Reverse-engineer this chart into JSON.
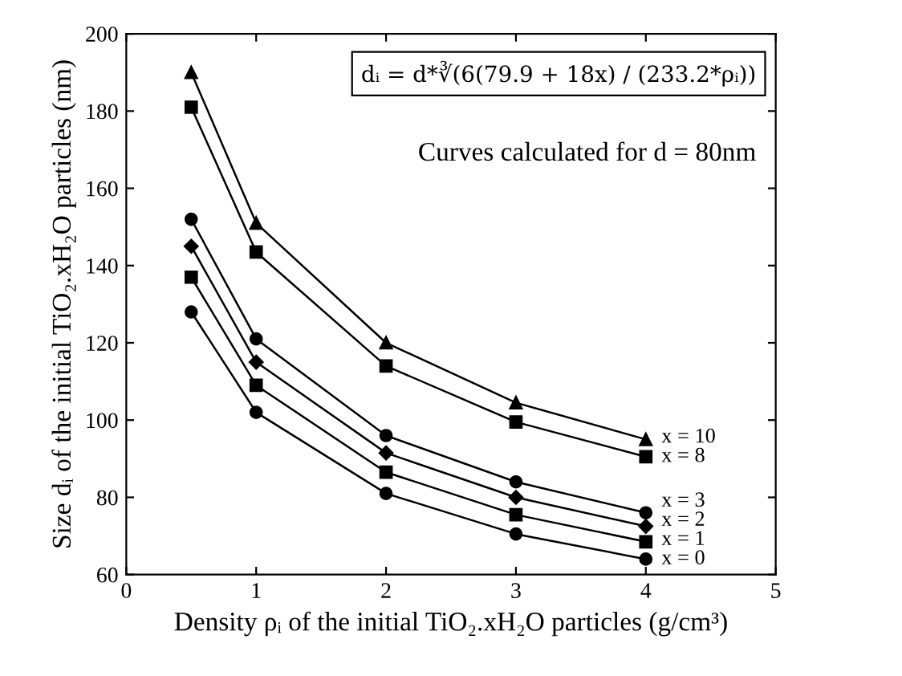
{
  "chart_data": {
    "type": "line",
    "xlabel": "Density ρᵢ of the initial TiO₂.xH₂O particles (g/cm³)",
    "ylabel": "Size dᵢ of the initial TiO₂.xH₂O particles (nm)",
    "x": [
      0.5,
      1,
      2,
      3,
      4
    ],
    "series": [
      {
        "name": "x = 10",
        "color": "#000000",
        "marker": "triangle",
        "values": [
          190,
          151,
          120,
          104.5,
          95
        ]
      },
      {
        "name": "x = 8",
        "color": "#000000",
        "marker": "square",
        "values": [
          181,
          143.5,
          114,
          99.5,
          90.5
        ]
      },
      {
        "name": "x = 3",
        "color": "#000000",
        "marker": "circle",
        "values": [
          152,
          121,
          96,
          84,
          76
        ]
      },
      {
        "name": "x = 2",
        "color": "#000000",
        "marker": "diamond",
        "values": [
          145,
          115,
          91.5,
          80,
          72.5
        ]
      },
      {
        "name": "x = 1",
        "color": "#000000",
        "marker": "square",
        "values": [
          137,
          109,
          86.5,
          75.5,
          68.5
        ]
      },
      {
        "name": "x = 0",
        "color": "#000000",
        "marker": "circle",
        "values": [
          128,
          102,
          81,
          70.5,
          64
        ]
      }
    ],
    "xlim": [
      0,
      5
    ],
    "xticks": [
      0,
      1,
      2,
      3,
      4,
      5
    ],
    "ylim": [
      60,
      200
    ],
    "yticks": [
      60,
      80,
      100,
      120,
      140,
      160,
      180,
      200
    ],
    "grid": false,
    "legend": false,
    "line_style": "solid",
    "annotations": [
      "dᵢ = d*∛(6(79.9 + 18x) / (233.2*ρᵢ))",
      "Curves calculated for d = 80nm"
    ]
  }
}
